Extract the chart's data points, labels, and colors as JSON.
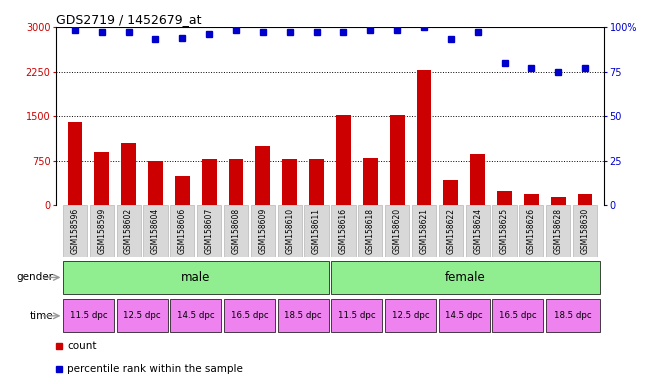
{
  "title": "GDS2719 / 1452679_at",
  "samples": [
    "GSM158596",
    "GSM158599",
    "GSM158602",
    "GSM158604",
    "GSM158606",
    "GSM158607",
    "GSM158608",
    "GSM158609",
    "GSM158610",
    "GSM158611",
    "GSM158616",
    "GSM158618",
    "GSM158620",
    "GSM158621",
    "GSM158622",
    "GSM158624",
    "GSM158625",
    "GSM158626",
    "GSM158628",
    "GSM158630"
  ],
  "counts": [
    1400,
    900,
    1050,
    750,
    500,
    780,
    780,
    1000,
    780,
    780,
    1520,
    800,
    1520,
    2280,
    430,
    870,
    250,
    200,
    150,
    200
  ],
  "percentiles": [
    98,
    97,
    97,
    93,
    94,
    96,
    98,
    97,
    97,
    97,
    97,
    98,
    98,
    100,
    93,
    97,
    80,
    77,
    75,
    77
  ],
  "bar_color": "#CC0000",
  "dot_color": "#0000CC",
  "ylim_left": [
    0,
    3000
  ],
  "ylim_right": [
    0,
    100
  ],
  "yticks_left": [
    0,
    750,
    1500,
    2250,
    3000
  ],
  "yticks_right": [
    0,
    25,
    50,
    75,
    100
  ],
  "ytick_labels_left": [
    "0",
    "750",
    "1500",
    "2250",
    "3000"
  ],
  "ytick_labels_right": [
    "0",
    "25",
    "50",
    "75",
    "100%"
  ],
  "grid_values": [
    750,
    1500,
    2250
  ],
  "gender_labels": [
    "male",
    "female"
  ],
  "gender_color": "#90EE90",
  "time_labels": [
    "11.5 dpc",
    "12.5 dpc",
    "14.5 dpc",
    "16.5 dpc",
    "18.5 dpc",
    "11.5 dpc",
    "12.5 dpc",
    "14.5 dpc",
    "16.5 dpc",
    "18.5 dpc"
  ],
  "time_colors": [
    "#EE82EE",
    "#EE82EE",
    "#EE82EE",
    "#EE82EE",
    "#EE82EE",
    "#EE82EE",
    "#EE82EE",
    "#EE82EE",
    "#EE82EE",
    "#EE82EE"
  ],
  "legend_count_color": "#CC0000",
  "legend_dot_color": "#0000CC",
  "xtick_bg": "#d8d8d8"
}
